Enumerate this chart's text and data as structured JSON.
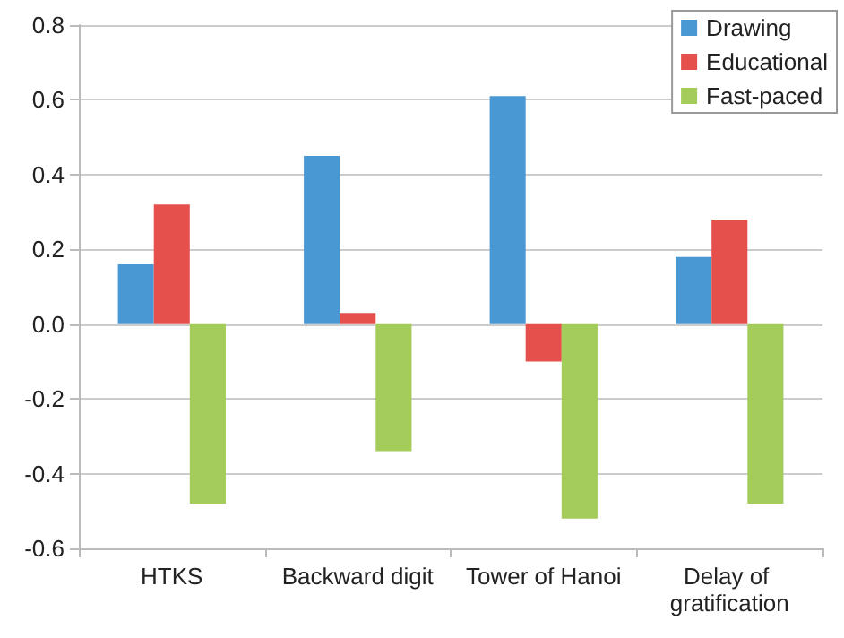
{
  "chart_data": {
    "type": "bar",
    "categories": [
      "HTKS",
      "Backward digit",
      "Tower of Hanoi",
      "Delay of gratification"
    ],
    "series": [
      {
        "name": "Drawing",
        "color": "#4a98d3",
        "values": [
          0.16,
          0.45,
          0.61,
          0.18
        ]
      },
      {
        "name": "Educational",
        "color": "#e5504d",
        "values": [
          0.32,
          0.03,
          -0.1,
          0.28
        ]
      },
      {
        "name": "Fast-paced",
        "color": "#a4cc5a",
        "values": [
          -0.48,
          -0.34,
          -0.52,
          -0.48
        ]
      }
    ],
    "ylim": [
      -0.6,
      0.8
    ],
    "yticks": [
      -0.6,
      -0.4,
      -0.2,
      {
        "value": 0,
        "label": "0.0"
      },
      0.2,
      0.4,
      0.6,
      0.8
    ],
    "grid": "y",
    "legend": "top right"
  }
}
